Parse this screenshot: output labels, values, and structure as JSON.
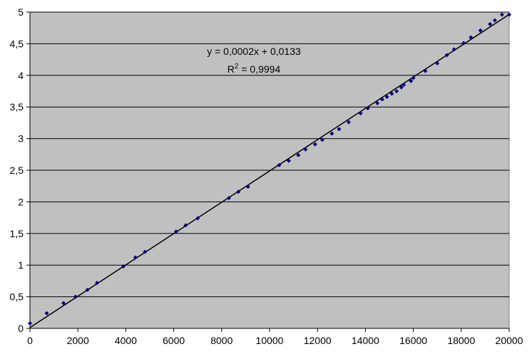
{
  "chart_data": {
    "type": "scatter",
    "title": "",
    "xlabel": "",
    "ylabel": "",
    "xlim": [
      0,
      20000
    ],
    "ylim": [
      0,
      5
    ],
    "x_ticks": [
      "0",
      "2000",
      "4000",
      "6000",
      "8000",
      "10000",
      "12000",
      "14000",
      "16000",
      "18000",
      "20000"
    ],
    "y_ticks": [
      "0",
      "0,5",
      "1",
      "1,5",
      "2",
      "2,5",
      "3",
      "3,5",
      "4",
      "4,5",
      "5"
    ],
    "grid": "horizontal",
    "legend": "none",
    "colors": {
      "plot_bg": "#c0c0c0",
      "marker": "#000080",
      "trendline": "#000000",
      "gridline": "#000000"
    },
    "series": [
      {
        "x": [
          0,
          700,
          1400,
          1900,
          2400,
          2800,
          3900,
          4400,
          4800,
          6100,
          6500,
          7000,
          8300,
          8700,
          9100,
          10400,
          10800,
          11200,
          11500,
          11900,
          12200,
          12600,
          12900,
          13300,
          13800,
          14100,
          14500,
          14700,
          14900,
          15100,
          15300,
          15500,
          15600,
          15900,
          16000,
          16500,
          17000,
          17400,
          17700,
          18100,
          18400,
          18800,
          19200,
          19400,
          19700,
          20000
        ],
        "y": [
          0.08,
          0.24,
          0.4,
          0.5,
          0.61,
          0.72,
          0.98,
          1.12,
          1.21,
          1.53,
          1.63,
          1.74,
          2.06,
          2.16,
          2.24,
          2.58,
          2.65,
          2.74,
          2.83,
          2.91,
          2.98,
          3.08,
          3.15,
          3.26,
          3.4,
          3.48,
          3.56,
          3.62,
          3.66,
          3.71,
          3.75,
          3.81,
          3.85,
          3.91,
          3.96,
          4.07,
          4.19,
          4.32,
          4.41,
          4.51,
          4.6,
          4.71,
          4.81,
          4.87,
          4.96,
          4.96
        ]
      }
    ],
    "trendline": {
      "slope": 0.0002475,
      "intercept": 0.0133,
      "equation": "y = 0,0002x + 0,0133",
      "r2_label": "R",
      "r2_sup": "2",
      "r2_value": " = 0,9994"
    }
  }
}
